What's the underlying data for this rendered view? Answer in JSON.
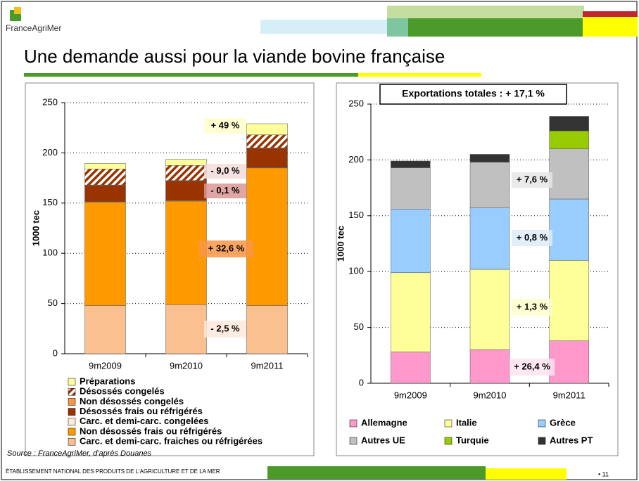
{
  "header": {
    "logo": "FranceAgriMer",
    "title": "Une demande aussi pour la viande bovine française"
  },
  "source": "Source : FranceAgriMer, d'après Douanes",
  "footer": {
    "text": "ÉTABLISSEMENT NATIONAL DES PRODUITS DE L'AGRICULTURE ET DE LA MER",
    "page": "• 11"
  },
  "chart_data": [
    {
      "type": "stacked_bar",
      "ylabel": "1000 tec",
      "categories": [
        "9m2009",
        "9m2010",
        "9m2011"
      ],
      "ylim": [
        0,
        250
      ],
      "yticks": [
        0,
        50,
        100,
        150,
        200,
        250
      ],
      "grid": true,
      "series": [
        {
          "name": "Carc. et demi-carc. fraiches ou réfrigérées",
          "color": "#fac090",
          "values": [
            48,
            49,
            48
          ]
        },
        {
          "name": "Non désossés frais ou réfrigérés",
          "color": "#ff9900",
          "values": [
            103,
            103,
            137
          ]
        },
        {
          "name": "Carc. et demi-carc. congelées",
          "color": "#fde9d9",
          "values": [
            0.5,
            0.5,
            0.5
          ]
        },
        {
          "name": "Désossés frais ou réfrigérés",
          "color": "#993300",
          "values": [
            16,
            19.5,
            19
          ]
        },
        {
          "name": "Non désossés congelés",
          "color": "#f79646",
          "values": [
            0.5,
            0.5,
            0.5
          ]
        },
        {
          "name": "Désossés congelés",
          "color": "#993300",
          "pattern": "hatch",
          "values": [
            16,
            15,
            13
          ]
        },
        {
          "name": "Préparations",
          "color": "#ffff99",
          "values": [
            5.5,
            6,
            11
          ]
        }
      ],
      "annotations": [
        {
          "text": "+ 49 %",
          "color": "#ffffcc"
        },
        {
          "text": "- 9,0 %",
          "color": "#f2dcdb"
        },
        {
          "text": "- 0,1 %",
          "color": "#d99694"
        },
        {
          "text": "+ 32,6 %",
          "color": "#f79646"
        },
        {
          "text": "- 2,5 %",
          "color": "#fde9d9"
        }
      ]
    },
    {
      "type": "stacked_bar",
      "ylabel": "1000 tec",
      "title": "Exportations totales : + 17,1 %",
      "categories": [
        "9m2009",
        "9m2010",
        "9m2011"
      ],
      "ylim": [
        0,
        250
      ],
      "yticks": [
        0,
        50,
        100,
        150,
        200,
        250
      ],
      "grid": true,
      "series": [
        {
          "name": "Allemagne",
          "color": "#ff99cc",
          "values": [
            28,
            30,
            38
          ]
        },
        {
          "name": "Italie",
          "color": "#ffff99",
          "values": [
            71,
            72,
            72
          ]
        },
        {
          "name": "Grèce",
          "color": "#99ccff",
          "values": [
            57,
            55,
            55
          ]
        },
        {
          "name": "Autres UE",
          "color": "#c0c0c0",
          "values": [
            37,
            41,
            45
          ]
        },
        {
          "name": "Turquie",
          "color": "#99cc00",
          "values": [
            0,
            0,
            16
          ]
        },
        {
          "name": "Autres PT",
          "color": "#333333",
          "values": [
            6,
            7,
            13
          ]
        }
      ],
      "annotations": [
        {
          "text": "+ 7,6 %",
          "color": "#e6e6e6"
        },
        {
          "text": "+ 0,8 %",
          "color": "#ddebf7"
        },
        {
          "text": "+ 1,3 %",
          "color": "#ffffcc"
        },
        {
          "text": "+ 26,4 %",
          "color": "#fde4ef"
        }
      ]
    }
  ]
}
